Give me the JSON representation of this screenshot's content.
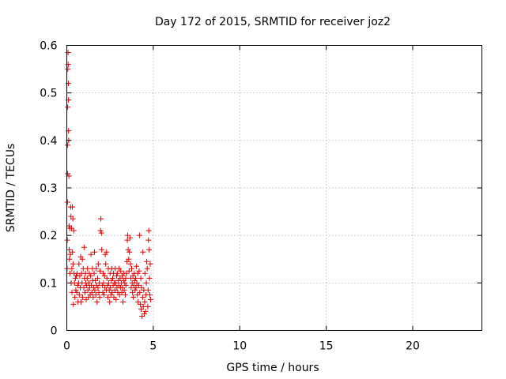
{
  "chart_data": {
    "type": "scatter",
    "title": "Day 172 of 2015, SRMTID for receiver joz2",
    "xlabel": "GPS time / hours",
    "ylabel": "SRMTID / TECUs",
    "xlim": [
      0,
      24
    ],
    "ylim": [
      0,
      0.6
    ],
    "x_ticks": [
      0,
      5,
      10,
      15,
      20
    ],
    "x_tick_labels": [
      "0",
      "5",
      "10",
      "15",
      "20"
    ],
    "y_ticks": [
      0,
      0.1,
      0.2,
      0.3,
      0.4,
      0.5,
      0.6
    ],
    "y_tick_labels": [
      "0",
      "0.1",
      "0.2",
      "0.3",
      "0.4",
      "0.5",
      "0.6"
    ],
    "grid": true,
    "marker": "plus",
    "color": "#e00000",
    "series": [
      {
        "name": "SRMTID",
        "points": [
          [
            0.02,
            0.13
          ],
          [
            0.03,
            0.19
          ],
          [
            0.04,
            0.27
          ],
          [
            0.05,
            0.33
          ],
          [
            0.05,
            0.39
          ],
          [
            0.05,
            0.47
          ],
          [
            0.06,
            0.55
          ],
          [
            0.07,
            0.585
          ],
          [
            0.08,
            0.56
          ],
          [
            0.09,
            0.52
          ],
          [
            0.1,
            0.485
          ],
          [
            0.1,
            0.42
          ],
          [
            0.11,
            0.4
          ],
          [
            0.12,
            0.325
          ],
          [
            0.13,
            0.22
          ],
          [
            0.14,
            0.17
          ],
          [
            0.15,
            0.15
          ],
          [
            0.17,
            0.215
          ],
          [
            0.18,
            0.12
          ],
          [
            0.2,
            0.16
          ],
          [
            0.22,
            0.26
          ],
          [
            0.24,
            0.24
          ],
          [
            0.25,
            0.1
          ],
          [
            0.27,
            0.215
          ],
          [
            0.29,
            0.13
          ],
          [
            0.3,
            0.08
          ],
          [
            0.32,
            0.26
          ],
          [
            0.33,
            0.165
          ],
          [
            0.35,
            0.235
          ],
          [
            0.36,
            0.14
          ],
          [
            0.38,
            0.055
          ],
          [
            0.4,
            0.21
          ],
          [
            0.42,
            0.12
          ],
          [
            0.45,
            0.1
          ],
          [
            0.47,
            0.07
          ],
          [
            0.5,
            0.11
          ],
          [
            0.52,
            0.085
          ],
          [
            0.55,
            0.115
          ],
          [
            0.58,
            0.08
          ],
          [
            0.6,
            0.12
          ],
          [
            0.63,
            0.095
          ],
          [
            0.65,
            0.06
          ],
          [
            0.68,
            0.1
          ],
          [
            0.7,
            0.14
          ],
          [
            0.72,
            0.075
          ],
          [
            0.75,
            0.115
          ],
          [
            0.78,
            0.09
          ],
          [
            0.8,
            0.155
          ],
          [
            0.82,
            0.06
          ],
          [
            0.85,
            0.12
          ],
          [
            0.88,
            0.1
          ],
          [
            0.9,
            0.15
          ],
          [
            0.92,
            0.07
          ],
          [
            0.95,
            0.13
          ],
          [
            0.98,
            0.09
          ],
          [
            1.0,
            0.175
          ],
          [
            1.02,
            0.11
          ],
          [
            1.05,
            0.08
          ],
          [
            1.08,
            0.12
          ],
          [
            1.1,
            0.1
          ],
          [
            1.12,
            0.065
          ],
          [
            1.15,
            0.095
          ],
          [
            1.18,
            0.11
          ],
          [
            1.2,
            0.13
          ],
          [
            1.22,
            0.085
          ],
          [
            1.25,
            0.07
          ],
          [
            1.28,
            0.1
          ],
          [
            1.3,
            0.12
          ],
          [
            1.32,
            0.09
          ],
          [
            1.35,
            0.075
          ],
          [
            1.38,
            0.115
          ],
          [
            1.4,
            0.16
          ],
          [
            1.42,
            0.095
          ],
          [
            1.45,
            0.08
          ],
          [
            1.48,
            0.13
          ],
          [
            1.5,
            0.105
          ],
          [
            1.52,
            0.07
          ],
          [
            1.55,
            0.09
          ],
          [
            1.58,
            0.12
          ],
          [
            1.6,
            0.165
          ],
          [
            1.62,
            0.085
          ],
          [
            1.65,
            0.105
          ],
          [
            1.68,
            0.075
          ],
          [
            1.7,
            0.13
          ],
          [
            1.72,
            0.095
          ],
          [
            1.75,
            0.06
          ],
          [
            1.78,
            0.11
          ],
          [
            1.8,
            0.09
          ],
          [
            1.82,
            0.14
          ],
          [
            1.85,
            0.08
          ],
          [
            1.88,
            0.1
          ],
          [
            1.9,
            0.07
          ],
          [
            1.92,
            0.125
          ],
          [
            1.95,
            0.21
          ],
          [
            1.97,
            0.235
          ],
          [
            2.0,
            0.205
          ],
          [
            2.02,
            0.17
          ],
          [
            2.05,
            0.095
          ],
          [
            2.08,
            0.08
          ],
          [
            2.1,
            0.12
          ],
          [
            2.12,
            0.1
          ],
          [
            2.15,
            0.075
          ],
          [
            2.18,
            0.115
          ],
          [
            2.2,
            0.09
          ],
          [
            2.22,
            0.16
          ],
          [
            2.25,
            0.14
          ],
          [
            2.28,
            0.085
          ],
          [
            2.3,
            0.165
          ],
          [
            2.32,
            0.11
          ],
          [
            2.35,
            0.095
          ],
          [
            2.38,
            0.07
          ],
          [
            2.4,
            0.13
          ],
          [
            2.42,
            0.1
          ],
          [
            2.45,
            0.085
          ],
          [
            2.48,
            0.06
          ],
          [
            2.5,
            0.12
          ],
          [
            2.52,
            0.09
          ],
          [
            2.55,
            0.075
          ],
          [
            2.58,
            0.105
          ],
          [
            2.6,
            0.13
          ],
          [
            2.62,
            0.08
          ],
          [
            2.65,
            0.11
          ],
          [
            2.68,
            0.095
          ],
          [
            2.7,
            0.12
          ],
          [
            2.72,
            0.07
          ],
          [
            2.75,
            0.1
          ],
          [
            2.78,
            0.085
          ],
          [
            2.8,
            0.13
          ],
          [
            2.82,
            0.1
          ],
          [
            2.85,
            0.065
          ],
          [
            2.88,
            0.115
          ],
          [
            2.9,
            0.09
          ],
          [
            2.92,
            0.12
          ],
          [
            2.95,
            0.08
          ],
          [
            2.98,
            0.105
          ],
          [
            3.0,
            0.095
          ],
          [
            3.02,
            0.13
          ],
          [
            3.05,
            0.075
          ],
          [
            3.08,
            0.11
          ],
          [
            3.1,
            0.09
          ],
          [
            3.12,
            0.125
          ],
          [
            3.15,
            0.1
          ],
          [
            3.18,
            0.08
          ],
          [
            3.2,
            0.115
          ],
          [
            3.22,
            0.09
          ],
          [
            3.25,
            0.06
          ],
          [
            3.28,
            0.105
          ],
          [
            3.3,
            0.12
          ],
          [
            3.32,
            0.085
          ],
          [
            3.35,
            0.1
          ],
          [
            3.38,
            0.075
          ],
          [
            3.4,
            0.11
          ],
          [
            3.42,
            0.095
          ],
          [
            3.45,
            0.12
          ],
          [
            3.48,
            0.145
          ],
          [
            3.5,
            0.19
          ],
          [
            3.52,
            0.2
          ],
          [
            3.55,
            0.17
          ],
          [
            3.58,
            0.15
          ],
          [
            3.6,
            0.125
          ],
          [
            3.62,
            0.165
          ],
          [
            3.65,
            0.195
          ],
          [
            3.68,
            0.14
          ],
          [
            3.7,
            0.11
          ],
          [
            3.72,
            0.09
          ],
          [
            3.75,
            0.13
          ],
          [
            3.78,
            0.1
          ],
          [
            3.8,
            0.08
          ],
          [
            3.82,
            0.115
          ],
          [
            3.85,
            0.07
          ],
          [
            3.88,
            0.095
          ],
          [
            3.9,
            0.12
          ],
          [
            3.92,
            0.105
          ],
          [
            3.95,
            0.085
          ],
          [
            3.98,
            0.11
          ],
          [
            4.0,
            0.09
          ],
          [
            4.02,
            0.135
          ],
          [
            4.05,
            0.1
          ],
          [
            4.08,
            0.075
          ],
          [
            4.1,
            0.12
          ],
          [
            4.12,
            0.06
          ],
          [
            4.15,
            0.095
          ],
          [
            4.18,
            0.125
          ],
          [
            4.2,
            0.2
          ],
          [
            4.22,
            0.08
          ],
          [
            4.25,
            0.055
          ],
          [
            4.28,
            0.11
          ],
          [
            4.3,
            0.045
          ],
          [
            4.32,
            0.09
          ],
          [
            4.35,
            0.03
          ],
          [
            4.38,
            0.07
          ],
          [
            4.4,
            0.165
          ],
          [
            4.42,
            0.05
          ],
          [
            4.45,
            0.085
          ],
          [
            4.48,
            0.035
          ],
          [
            4.5,
            0.06
          ],
          [
            4.52,
            0.12
          ],
          [
            4.55,
            0.04
          ],
          [
            4.58,
            0.075
          ],
          [
            4.6,
            0.1
          ],
          [
            4.62,
            0.145
          ],
          [
            4.65,
            0.13
          ],
          [
            4.68,
            0.05
          ],
          [
            4.7,
            0.085
          ],
          [
            4.72,
            0.19
          ],
          [
            4.74,
            0.21
          ],
          [
            4.76,
            0.17
          ],
          [
            4.78,
            0.11
          ],
          [
            4.8,
            0.075
          ],
          [
            4.82,
            0.14
          ],
          [
            4.84,
            0.065
          ]
        ]
      }
    ]
  }
}
